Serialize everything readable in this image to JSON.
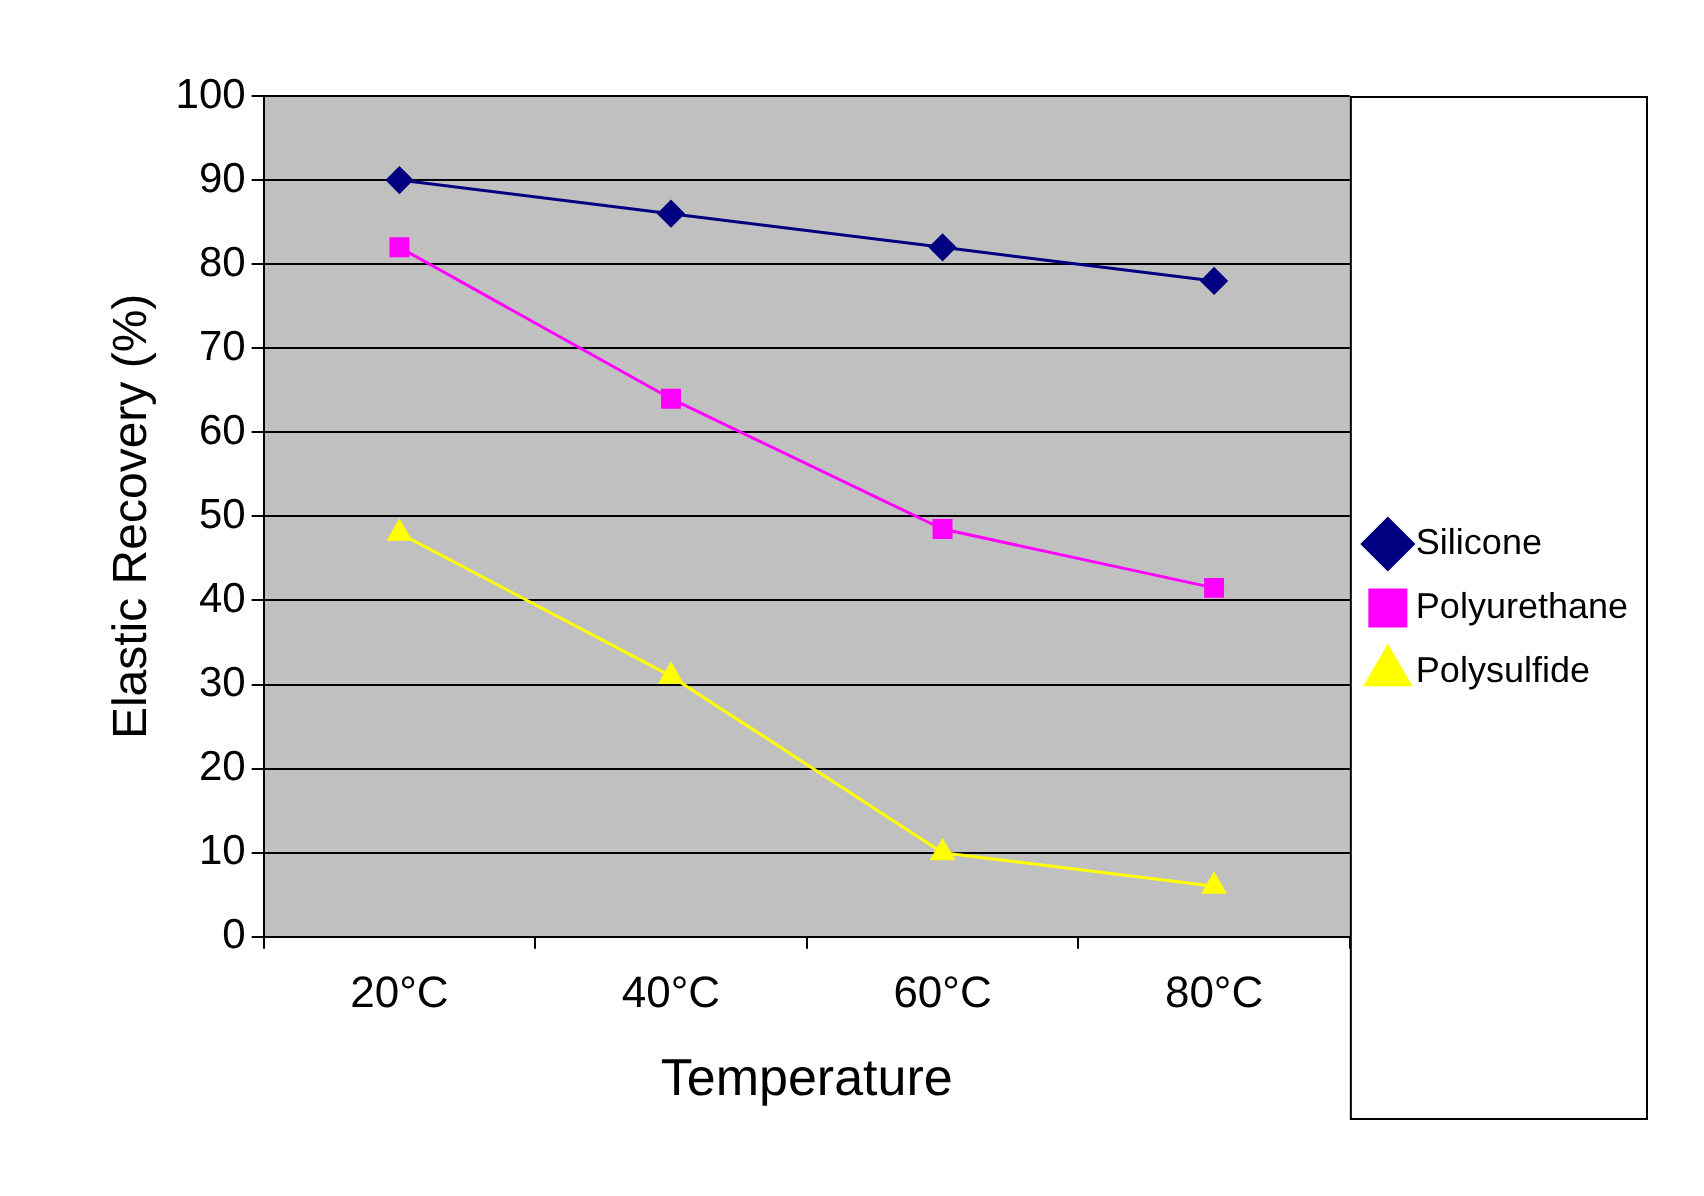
{
  "chart_data": {
    "type": "line",
    "xlabel": "Temperature",
    "ylabel": "Elastic Recovery (%)",
    "categories": [
      "20°C",
      "40°C",
      "60°C",
      "80°C"
    ],
    "series": [
      {
        "name": "Silicone",
        "color": "#000080",
        "marker": "diamond",
        "values": [
          90,
          86,
          82,
          78
        ]
      },
      {
        "name": "Polyurethane",
        "color": "#ff00ff",
        "marker": "square",
        "values": [
          82,
          64,
          48.5,
          41.5
        ]
      },
      {
        "name": "Polysulfide",
        "color": "#ffff00",
        "marker": "triangle",
        "values": [
          48,
          31,
          10,
          6
        ]
      }
    ],
    "ylim": [
      0,
      100
    ],
    "yticks": [
      0,
      10,
      20,
      30,
      40,
      50,
      60,
      70,
      80,
      90,
      100
    ],
    "grid": "y",
    "legend": "right"
  }
}
